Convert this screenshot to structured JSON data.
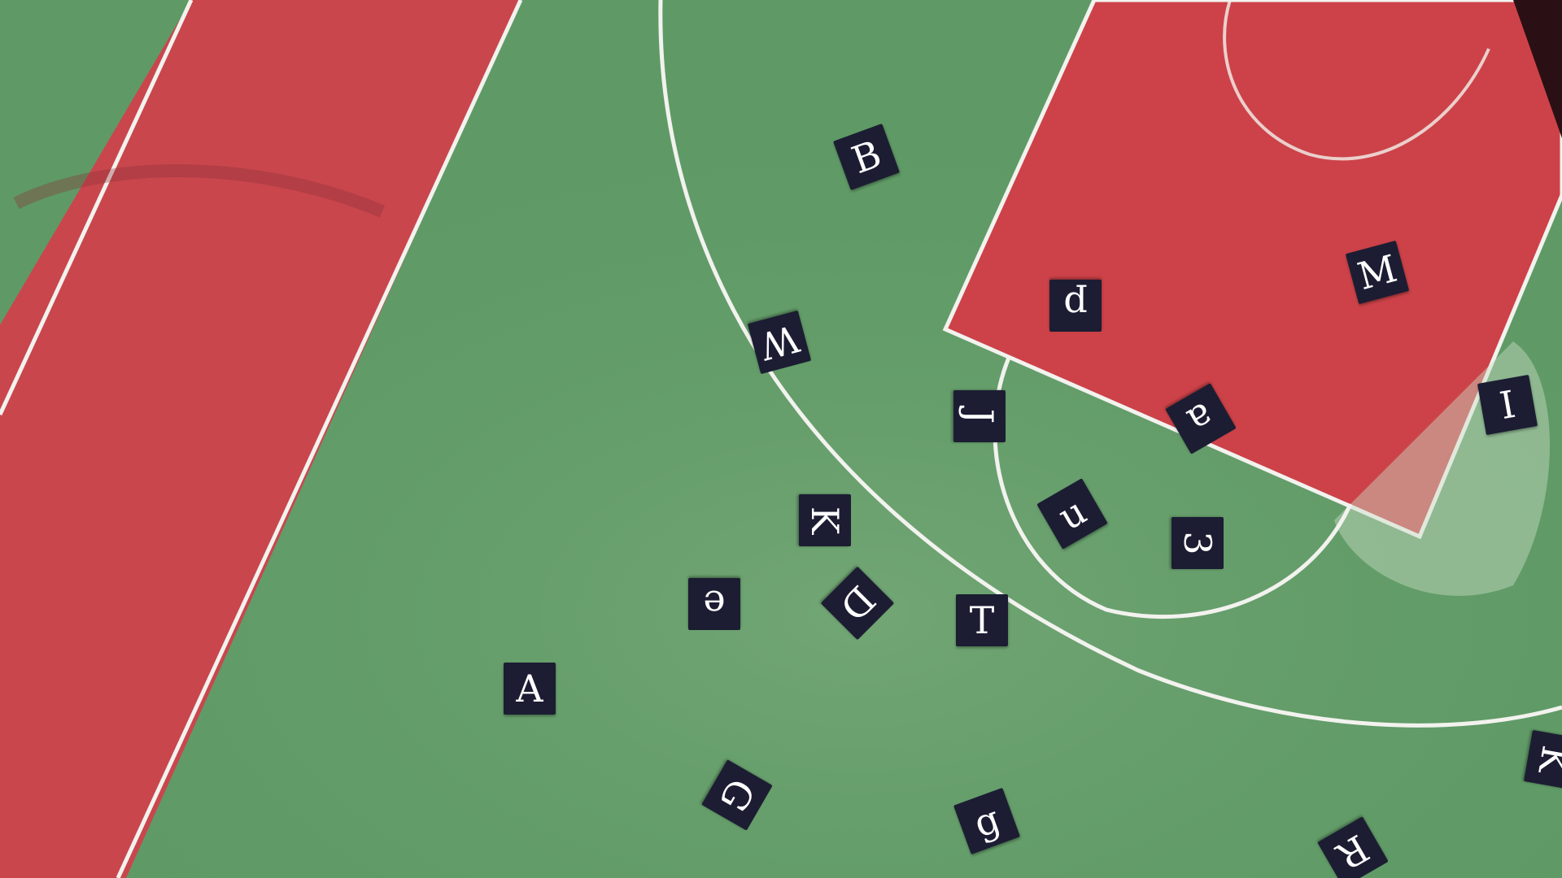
{
  "scene": {
    "description_alt": "Aerial view of outdoor basketball court with scattered letter tiles",
    "colors": {
      "court_green": "#5f9a66",
      "track_red": "#c9464d",
      "key_red": "#cc4248",
      "line_white": "#f2f2ee",
      "tile_navy": "#1c1d33",
      "tile_text": "#ffffff"
    }
  },
  "tiles": [
    {
      "id": "B",
      "char": "B"
    },
    {
      "id": "M",
      "char": "M"
    },
    {
      "id": "p",
      "char": "p"
    },
    {
      "id": "W",
      "char": "W"
    },
    {
      "id": "J",
      "char": "J"
    },
    {
      "id": "a",
      "char": "a"
    },
    {
      "id": "I",
      "char": "I"
    },
    {
      "id": "u",
      "char": "u"
    },
    {
      "id": "K",
      "char": "K"
    },
    {
      "id": "3",
      "char": "3"
    },
    {
      "id": "e",
      "char": "e"
    },
    {
      "id": "D",
      "char": "D"
    },
    {
      "id": "T",
      "char": "T"
    },
    {
      "id": "A",
      "char": "A"
    },
    {
      "id": "G",
      "char": "G"
    },
    {
      "id": "g",
      "char": "g"
    },
    {
      "id": "R",
      "char": "R"
    },
    {
      "id": "edge",
      "char": "K"
    }
  ]
}
